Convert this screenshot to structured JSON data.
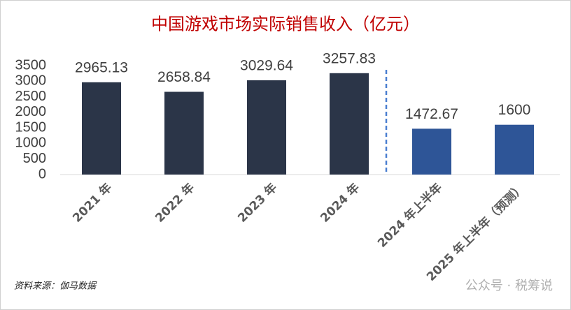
{
  "chart_data": {
    "type": "bar",
    "title": "中国游戏市场实际销售收入（亿元）",
    "categories": [
      "2021 年",
      "2022 年",
      "2023 年",
      "2024 年",
      "2024 年上半年",
      "2025 年上半年（预测）"
    ],
    "values": [
      2965.13,
      2658.84,
      3029.64,
      3257.83,
      1472.67,
      1600
    ],
    "colors": [
      "#2b3548",
      "#2b3548",
      "#2b3548",
      "#2b3548",
      "#2e5597",
      "#2e5597"
    ],
    "title_color": "#c00000",
    "ylim": [
      0,
      3500
    ],
    "yticks": [
      0,
      500,
      1000,
      1500,
      2000,
      2500,
      3000,
      3500
    ],
    "grid": false,
    "source": "资料来源：伽马数据",
    "watermark": "公众号 · 税筹说"
  }
}
